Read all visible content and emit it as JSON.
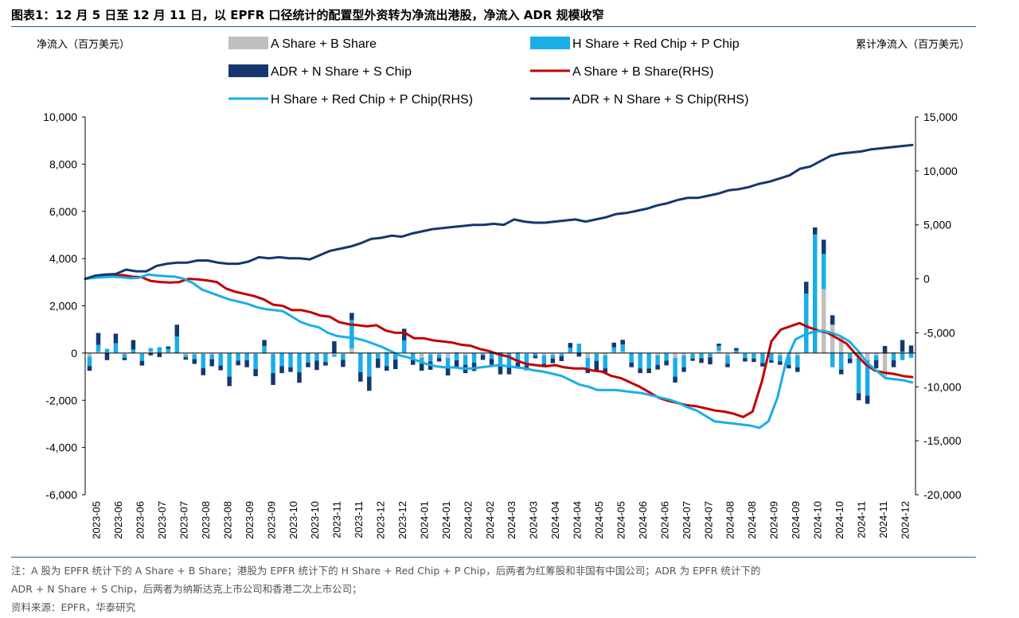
{
  "figure": {
    "title": "图表1：12 月 5 日至 12 月 11 日，以 EPFR 口径统计的配置型外资转为净流出港股，净流入 ADR 规模收窄",
    "note_line1": "注：A 股为 EPFR 统计下的 A Share + B Share；港股为 EPFR 统计下的 H Share + Red Chip + P Chip，后两者为红筹股和非国有中国公司；ADR 为 EPFR 统计下的",
    "note_line2": "ADR + N Share + S Chip，后两者为纳斯达克上市公司和香港二次上市公司；",
    "source": "资料来源：EPFR，华泰研究"
  },
  "chart_data": {
    "type": "bar",
    "ylabel": "净流入（百万美元）",
    "y2label": "累计净流入（百万美元）",
    "ylim": [
      -6000,
      10000
    ],
    "yticks": [
      -6000,
      -4000,
      -2000,
      0,
      2000,
      4000,
      6000,
      8000,
      10000
    ],
    "ytick_labels": [
      "-6,000",
      "-4,000",
      "-2,000",
      "0",
      "2,000",
      "4,000",
      "6,000",
      "8,000",
      "10,000"
    ],
    "y2lim": [
      -20000,
      15000
    ],
    "y2ticks": [
      -20000,
      -15000,
      -10000,
      -5000,
      0,
      5000,
      10000,
      15000
    ],
    "y2tick_labels": [
      "-20,000",
      "-15,000",
      "-10,000",
      "-5,000",
      "0",
      "5,000",
      "10,000",
      "15,000"
    ],
    "xtick_labels": [
      "2023-05",
      "2023-06",
      "2023-06",
      "2023-07",
      "2023-07",
      "2023-08",
      "2023-08",
      "2023-09",
      "2023-09",
      "2023-10",
      "2023-10",
      "2023-11",
      "2023-11",
      "2023-12",
      "2023-12",
      "2024-01",
      "2024-01",
      "2024-02",
      "2024-02",
      "2024-03",
      "2024-03",
      "2024-04",
      "2024-04",
      "2024-05",
      "2024-05",
      "2024-06",
      "2024-06",
      "2024-07",
      "2024-07",
      "2024-08",
      "2024-08",
      "2024-09",
      "2024-09",
      "2024-10",
      "2024-10",
      "2024-11",
      "2024-11",
      "2024-12"
    ],
    "legend": [
      {
        "name": "A Share + B Share",
        "kind": "bar",
        "color": "#bfbfbf"
      },
      {
        "name": "H Share + Red Chip + P Chip",
        "kind": "bar",
        "color": "#19aee8"
      },
      {
        "name": "ADR + N Share + S Chip",
        "kind": "bar",
        "color": "#14386e"
      },
      {
        "name": "A Share + B Share(RHS)",
        "kind": "line",
        "color": "#c00000"
      },
      {
        "name": "H Share + Red Chip + P Chip(RHS)",
        "kind": "line",
        "color": "#19aee8"
      },
      {
        "name": "ADR + N Share + S Chip(RHS)",
        "kind": "line",
        "color": "#14386e"
      }
    ],
    "bar_series": [
      {
        "name": "A Share + B Share",
        "color": "#bfbfbf",
        "values": [
          -150,
          50,
          30,
          20,
          -50,
          0,
          -30,
          60,
          -20,
          30,
          -10,
          -80,
          -60,
          -40,
          -60,
          -30,
          10,
          -20,
          10,
          -30,
          -20,
          -50,
          20,
          0,
          -10,
          10,
          -20,
          -30,
          -60,
          -40,
          200,
          -10,
          20,
          -30,
          60,
          -30,
          30,
          0,
          -200,
          -60,
          -60,
          -200,
          40,
          -100,
          -10,
          -40,
          0,
          50,
          10,
          40,
          -30,
          -20,
          -100,
          -80,
          -40,
          30,
          0,
          -200,
          -30,
          -100,
          40,
          60,
          20,
          0,
          10,
          -100,
          -20,
          -200,
          -100,
          -30,
          -20,
          -30,
          100,
          -100,
          10,
          -10,
          -30,
          -20,
          -10,
          -100,
          -150,
          -100,
          20,
          20,
          2700,
          1200,
          700,
          -30,
          -200,
          -300,
          -100,
          -1000,
          30,
          50,
          20
        ]
      },
      {
        "name": "H Share + Red Chip + P Chip",
        "color": "#19aee8",
        "values": [
          -400,
          300,
          150,
          400,
          -150,
          150,
          -300,
          150,
          250,
          150,
          700,
          -100,
          -200,
          -600,
          -200,
          -500,
          -1000,
          -300,
          -300,
          -650,
          300,
          -800,
          -550,
          -600,
          -800,
          -400,
          -300,
          -350,
          -100,
          -250,
          1200,
          -800,
          -1000,
          -200,
          -550,
          -250,
          500,
          -300,
          -250,
          -300,
          -150,
          -350,
          -300,
          -400,
          -400,
          -50,
          -250,
          -500,
          -550,
          -400,
          -500,
          -100,
          -350,
          -150,
          -100,
          200,
          400,
          -450,
          -300,
          -550,
          200,
          300,
          -400,
          -650,
          -650,
          -400,
          -300,
          -800,
          -500,
          -200,
          -200,
          -150,
          200,
          -350,
          100,
          -200,
          -200,
          -400,
          -300,
          -250,
          -350,
          -500,
          2500,
          5000,
          1500,
          -600,
          -700,
          -200,
          -1500,
          -1500,
          -200,
          0,
          -300,
          -300,
          -200
        ]
      },
      {
        "name": "ADR + N Share + S Chip",
        "color": "#14386e",
        "values": [
          -200,
          500,
          -300,
          400,
          -100,
          400,
          -200,
          -100,
          -150,
          100,
          500,
          -100,
          -200,
          -300,
          -300,
          -200,
          -400,
          -200,
          -300,
          -300,
          250,
          -500,
          -300,
          -200,
          -450,
          -200,
          -400,
          -150,
          500,
          -300,
          300,
          -400,
          -600,
          -400,
          -200,
          -400,
          500,
          -200,
          -300,
          -350,
          -150,
          -400,
          -300,
          -350,
          -350,
          -200,
          -250,
          -400,
          -350,
          -200,
          -200,
          -100,
          -150,
          -200,
          -200,
          200,
          -150,
          -200,
          -400,
          -200,
          200,
          200,
          -200,
          -200,
          -200,
          -200,
          -200,
          -250,
          -200,
          -100,
          -200,
          -300,
          100,
          -150,
          100,
          -150,
          -150,
          -150,
          -100,
          -150,
          -150,
          -200,
          500,
          300,
          600,
          400,
          -200,
          -200,
          -300,
          -350,
          -350,
          300,
          -300,
          500,
          300
        ]
      }
    ],
    "line_series": [
      {
        "name": "A Share + B Share(RHS)",
        "color": "#c00000",
        "values": [
          0,
          200,
          350,
          300,
          350,
          200,
          150,
          -200,
          -300,
          -350,
          -300,
          0,
          -50,
          -150,
          -300,
          -900,
          -1200,
          -1400,
          -1600,
          -1900,
          -2400,
          -2500,
          -2900,
          -2900,
          -3100,
          -3400,
          -3500,
          -4000,
          -4200,
          -4300,
          -4400,
          -4300,
          -4800,
          -5000,
          -5000,
          -5500,
          -5500,
          -5700,
          -5800,
          -5900,
          -6100,
          -6200,
          -6500,
          -6700,
          -7000,
          -7200,
          -7600,
          -7900,
          -8000,
          -8100,
          -8000,
          -8200,
          -8300,
          -8300,
          -8500,
          -8600,
          -9000,
          -9200,
          -9600,
          -10000,
          -10500,
          -11000,
          -11300,
          -11500,
          -11700,
          -11800,
          -12000,
          -12200,
          -12300,
          -12500,
          -12800,
          -12300,
          -9500,
          -5800,
          -4700,
          -4400,
          -4100,
          -4500,
          -4800,
          -5000,
          -5500,
          -6000,
          -7000,
          -7900,
          -8500,
          -8700,
          -8800,
          -9000,
          -9100
        ]
      },
      {
        "name": "H Share + Red Chip + P Chip(RHS)",
        "color": "#19aee8",
        "values": [
          0,
          100,
          150,
          200,
          150,
          50,
          100,
          400,
          300,
          250,
          200,
          0,
          -400,
          -1000,
          -1300,
          -1600,
          -1900,
          -2100,
          -2300,
          -2600,
          -2800,
          -2900,
          -3000,
          -3500,
          -4000,
          -4300,
          -4500,
          -5000,
          -5300,
          -5400,
          -5500,
          -5700,
          -6000,
          -6300,
          -6700,
          -7100,
          -7300,
          -7600,
          -7900,
          -8100,
          -8200,
          -8200,
          -8300,
          -8300,
          -8200,
          -8100,
          -8000,
          -8100,
          -8200,
          -8300,
          -8500,
          -8600,
          -8800,
          -9000,
          -9400,
          -9800,
          -10000,
          -10300,
          -10300,
          -10300,
          -10400,
          -10500,
          -10600,
          -10800,
          -11000,
          -11200,
          -11500,
          -11900,
          -12200,
          -12700,
          -13200,
          -13300,
          -13400,
          -13500,
          -13600,
          -13800,
          -13200,
          -11000,
          -7500,
          -5600,
          -5200,
          -4900,
          -4800,
          -5000,
          -5300,
          -5800,
          -6700,
          -7800,
          -8500,
          -9200,
          -9300,
          -9400,
          -9600
        ]
      },
      {
        "name": "ADR + N Share + S Chip(RHS)",
        "color": "#14386e",
        "values": [
          0,
          300,
          400,
          450,
          850,
          700,
          700,
          1200,
          1400,
          1500,
          1500,
          1700,
          1700,
          1500,
          1400,
          1400,
          1600,
          2000,
          1900,
          2000,
          1900,
          1900,
          1800,
          2200,
          2600,
          2800,
          3000,
          3300,
          3700,
          3800,
          4000,
          3900,
          4200,
          4400,
          4600,
          4700,
          4800,
          4900,
          5000,
          5000,
          5100,
          5000,
          5500,
          5300,
          5200,
          5200,
          5300,
          5400,
          5500,
          5300,
          5500,
          5700,
          6000,
          6100,
          6300,
          6500,
          6800,
          7000,
          7300,
          7500,
          7500,
          7700,
          7900,
          8200,
          8300,
          8500,
          8800,
          9000,
          9300,
          9600,
          10200,
          10400,
          10900,
          11400,
          11600,
          11700,
          11800,
          12000,
          12100,
          12200,
          12300,
          12400
        ]
      }
    ]
  }
}
